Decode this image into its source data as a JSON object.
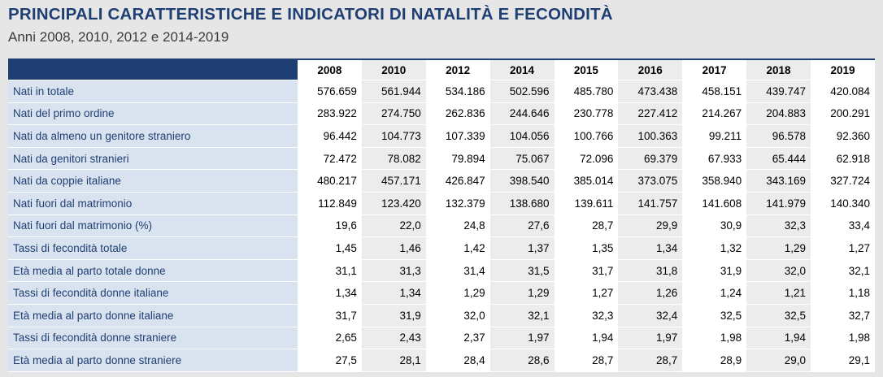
{
  "header": {
    "title": "PRINCIPALI CARATTERISTICHE E INDICATORI DI NATALITÀ E FECONDITÀ",
    "subtitle": "Anni 2008, 2010, 2012 e 2014-2019"
  },
  "table": {
    "columns": [
      "2008",
      "2010",
      "2012",
      "2014",
      "2015",
      "2016",
      "2017",
      "2018",
      "2019"
    ],
    "rows": [
      {
        "label": "Nati in totale",
        "cells": [
          "576.659",
          "561.944",
          "534.186",
          "502.596",
          "485.780",
          "473.438",
          "458.151",
          "439.747",
          "420.084"
        ]
      },
      {
        "label": "Nati del primo ordine",
        "cells": [
          "283.922",
          "274.750",
          "262.836",
          "244.646",
          "230.778",
          "227.412",
          "214.267",
          "204.883",
          "200.291"
        ]
      },
      {
        "label": "Nati da almeno un genitore straniero",
        "cells": [
          "96.442",
          "104.773",
          "107.339",
          "104.056",
          "100.766",
          "100.363",
          "99.211",
          "96.578",
          "92.360"
        ]
      },
      {
        "label": "Nati da genitori stranieri",
        "cells": [
          "72.472",
          "78.082",
          "79.894",
          "75.067",
          "72.096",
          "69.379",
          "67.933",
          "65.444",
          "62.918"
        ]
      },
      {
        "label": "Nati da coppie italiane",
        "cells": [
          "480.217",
          "457.171",
          "426.847",
          "398.540",
          "385.014",
          "373.075",
          "358.940",
          "343.169",
          "327.724"
        ]
      },
      {
        "label": "Nati fuori dal matrimonio",
        "cells": [
          "112.849",
          "123.420",
          "132.379",
          "138.680",
          "139.611",
          "141.757",
          "141.608",
          "141.979",
          "140.340"
        ]
      },
      {
        "label": "Nati fuori dal matrimonio (%)",
        "cells": [
          "19,6",
          "22,0",
          "24,8",
          "27,6",
          "28,7",
          "29,9",
          "30,9",
          "32,3",
          "33,4"
        ]
      },
      {
        "label": "Tassi di fecondità totale",
        "cells": [
          "1,45",
          "1,46",
          "1,42",
          "1,37",
          "1,35",
          "1,34",
          "1,32",
          "1,29",
          "1,27"
        ]
      },
      {
        "label": "Età media al parto totale donne",
        "cells": [
          "31,1",
          "31,3",
          "31,4",
          "31,5",
          "31,7",
          "31,8",
          "31,9",
          "32,0",
          "32,1"
        ]
      },
      {
        "label": "Tassi di fecondità donne italiane",
        "cells": [
          "1,34",
          "1,34",
          "1,29",
          "1,29",
          "1,27",
          "1,26",
          "1,24",
          "1,21",
          "1,18"
        ]
      },
      {
        "label": "Età media al parto donne italiane",
        "cells": [
          "31,7",
          "31,9",
          "32,0",
          "32,1",
          "32,3",
          "32,4",
          "32,5",
          "32,5",
          "32,7"
        ]
      },
      {
        "label": "Tassi di fecondità donne straniere",
        "cells": [
          "2,65",
          "2,43",
          "2,37",
          "1,97",
          "1,94",
          "1,97",
          "1,98",
          "1,94",
          "1,98"
        ]
      },
      {
        "label": "Età media al parto donne straniere",
        "cells": [
          "27,5",
          "28,1",
          "28,4",
          "28,6",
          "28,7",
          "28,7",
          "28,9",
          "29,0",
          "29,1"
        ]
      }
    ]
  }
}
